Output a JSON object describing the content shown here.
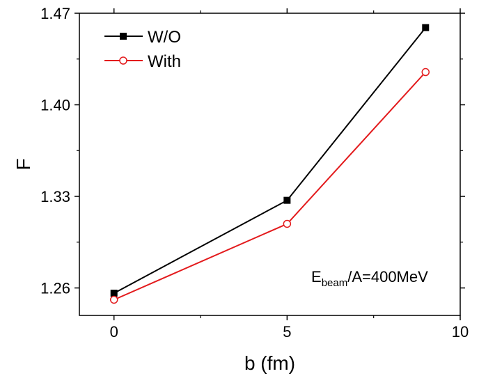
{
  "chart_data": {
    "type": "line",
    "title": "",
    "xlabel": "b (fm)",
    "ylabel": "F",
    "xlim": [
      -1,
      10
    ],
    "ylim": [
      1.239,
      1.47
    ],
    "xticks": [
      0,
      5,
      10
    ],
    "yticks": [
      1.26,
      1.33,
      1.4,
      1.47
    ],
    "ytick_labels": [
      "1.26",
      "1.33",
      "1.40",
      "1.47"
    ],
    "xtick_labels": [
      "0",
      "5",
      "10"
    ],
    "grid": false,
    "legend_position": "top-left",
    "series": [
      {
        "name": "W/O",
        "color": "#000000",
        "marker": "filled-square",
        "x": [
          0,
          5,
          9
        ],
        "y": [
          1.256,
          1.327,
          1.459
        ]
      },
      {
        "name": "With",
        "color": "#e31a1c",
        "marker": "open-circle",
        "x": [
          0,
          5,
          9
        ],
        "y": [
          1.251,
          1.309,
          1.425
        ]
      }
    ],
    "annotation": {
      "main": "E",
      "sub": "beam",
      "rest": "/A=400MeV"
    }
  }
}
